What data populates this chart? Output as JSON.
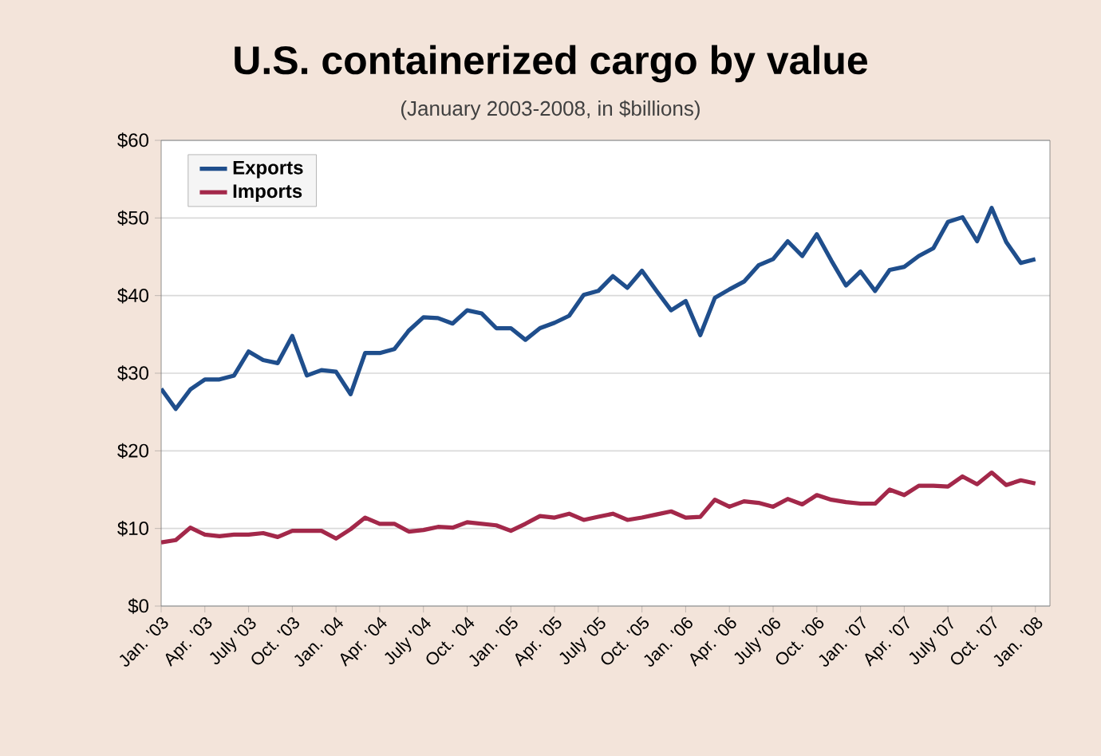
{
  "chart_data": {
    "type": "line",
    "title": "U.S. containerized cargo by value",
    "subtitle": "(January 2003-2008, in $billions)",
    "x": [
      "2003-01",
      "2003-02",
      "2003-03",
      "2003-04",
      "2003-05",
      "2003-06",
      "2003-07",
      "2003-08",
      "2003-09",
      "2003-10",
      "2003-11",
      "2003-12",
      "2004-01",
      "2004-02",
      "2004-03",
      "2004-04",
      "2004-05",
      "2004-06",
      "2004-07",
      "2004-08",
      "2004-09",
      "2004-10",
      "2004-11",
      "2004-12",
      "2005-01",
      "2005-02",
      "2005-03",
      "2005-04",
      "2005-05",
      "2005-06",
      "2005-07",
      "2005-08",
      "2005-09",
      "2005-10",
      "2005-11",
      "2005-12",
      "2006-01",
      "2006-02",
      "2006-03",
      "2006-04",
      "2006-05",
      "2006-06",
      "2006-07",
      "2006-08",
      "2006-09",
      "2006-10",
      "2006-11",
      "2006-12",
      "2007-01",
      "2007-02",
      "2007-03",
      "2007-04",
      "2007-05",
      "2007-06",
      "2007-07",
      "2007-08",
      "2007-09",
      "2007-10",
      "2007-11",
      "2007-12",
      "2008-01"
    ],
    "series": [
      {
        "name": "Exports",
        "color": "#1f4e8c",
        "values": [
          28.0,
          25.4,
          27.9,
          29.2,
          29.2,
          29.7,
          32.8,
          31.7,
          31.3,
          34.8,
          29.7,
          30.4,
          30.2,
          27.3,
          32.6,
          32.6,
          33.1,
          35.5,
          37.2,
          37.1,
          36.4,
          38.1,
          37.7,
          35.8,
          35.8,
          34.3,
          35.8,
          36.5,
          37.4,
          40.1,
          40.6,
          42.5,
          41.0,
          43.2,
          40.6,
          38.1,
          39.3,
          34.9,
          39.7,
          40.8,
          41.8,
          43.9,
          44.7,
          47.0,
          45.1,
          47.9,
          44.5,
          41.3,
          43.1,
          40.6,
          43.3,
          43.7,
          45.1,
          46.1,
          49.5,
          50.1,
          47.0,
          51.3,
          46.9,
          44.2,
          44.7
        ]
      },
      {
        "name": "Imports",
        "color": "#a3284a",
        "values": [
          8.2,
          8.5,
          10.1,
          9.2,
          9.0,
          9.2,
          9.2,
          9.4,
          8.9,
          9.7,
          9.7,
          9.7,
          8.7,
          9.9,
          11.4,
          10.6,
          10.6,
          9.6,
          9.8,
          10.2,
          10.1,
          10.8,
          10.6,
          10.4,
          9.7,
          10.6,
          11.6,
          11.4,
          11.9,
          11.1,
          11.5,
          11.9,
          11.1,
          11.4,
          11.8,
          12.2,
          11.4,
          11.5,
          13.7,
          12.8,
          13.5,
          13.3,
          12.8,
          13.8,
          13.1,
          14.3,
          13.7,
          13.4,
          13.2,
          13.2,
          15.0,
          14.3,
          15.5,
          15.5,
          15.4,
          16.7,
          15.7,
          17.2,
          15.6,
          16.2,
          15.8
        ]
      }
    ],
    "xlim": [
      "2003-01",
      "2008-02"
    ],
    "xticks": [
      {
        "value": "2003-01",
        "label": "Jan. '03"
      },
      {
        "value": "2003-04",
        "label": "Apr. '03"
      },
      {
        "value": "2003-07",
        "label": "July '03"
      },
      {
        "value": "2003-10",
        "label": "Oct. '03"
      },
      {
        "value": "2004-01",
        "label": "Jan. '04"
      },
      {
        "value": "2004-04",
        "label": "Apr. '04"
      },
      {
        "value": "2004-07",
        "label": "July '04"
      },
      {
        "value": "2004-10",
        "label": "Oct. '04"
      },
      {
        "value": "2005-01",
        "label": "Jan. '05"
      },
      {
        "value": "2005-04",
        "label": "Apr. '05"
      },
      {
        "value": "2005-07",
        "label": "July '05"
      },
      {
        "value": "2005-10",
        "label": "Oct. '05"
      },
      {
        "value": "2006-01",
        "label": "Jan. '06"
      },
      {
        "value": "2006-04",
        "label": "Apr. '06"
      },
      {
        "value": "2006-07",
        "label": "July '06"
      },
      {
        "value": "2006-10",
        "label": "Oct. '06"
      },
      {
        "value": "2007-01",
        "label": "Jan. '07"
      },
      {
        "value": "2007-04",
        "label": "Apr. '07"
      },
      {
        "value": "2007-07",
        "label": "July '07"
      },
      {
        "value": "2007-10",
        "label": "Oct. '07"
      },
      {
        "value": "2008-01",
        "label": "Jan. '08"
      }
    ],
    "ylim": [
      0,
      60
    ],
    "yticks": [
      {
        "value": 0,
        "label": "$0"
      },
      {
        "value": 10,
        "label": "$10"
      },
      {
        "value": 20,
        "label": "$20"
      },
      {
        "value": 30,
        "label": "$30"
      },
      {
        "value": 40,
        "label": "$40"
      },
      {
        "value": 50,
        "label": "$50"
      },
      {
        "value": 60,
        "label": "$60"
      }
    ],
    "grid": "y",
    "legend": "top left",
    "marker": "none",
    "line_style": "solid"
  }
}
